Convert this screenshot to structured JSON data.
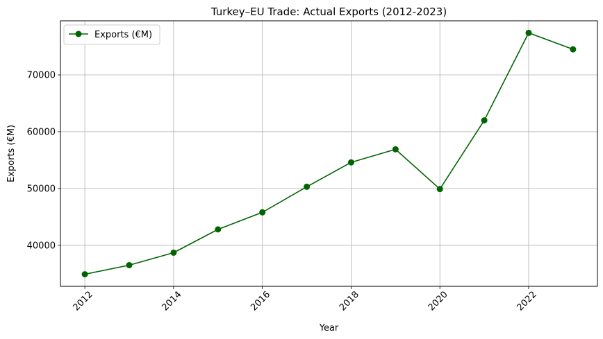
{
  "chart_data": {
    "type": "line",
    "title": "Turkey–EU Trade: Actual Exports (2012-2023)",
    "xlabel": "Year",
    "ylabel": "Exports (€M)",
    "x": [
      2012,
      2013,
      2014,
      2015,
      2016,
      2017,
      2018,
      2019,
      2020,
      2021,
      2022,
      2023
    ],
    "series": [
      {
        "name": "Exports (€M)",
        "color": "#006400",
        "marker": "circle",
        "values": [
          34900,
          36500,
          38700,
          42800,
          45800,
          50300,
          54600,
          56900,
          49900,
          62000,
          77400,
          74500
        ]
      }
    ],
    "xticks": [
      2012,
      2014,
      2016,
      2018,
      2020,
      2022
    ],
    "xtick_labels": [
      "2012",
      "2014",
      "2016",
      "2018",
      "2020",
      "2022"
    ],
    "yticks": [
      40000,
      50000,
      60000,
      70000
    ],
    "ytick_labels": [
      "40000",
      "50000",
      "60000",
      "70000"
    ],
    "xlim": [
      2011.45,
      2023.55
    ],
    "ylim": [
      32775,
      79525
    ],
    "grid": true,
    "legend": "upper left",
    "colors": {
      "grid": "#b0b0b0",
      "axes": "#000000"
    }
  }
}
